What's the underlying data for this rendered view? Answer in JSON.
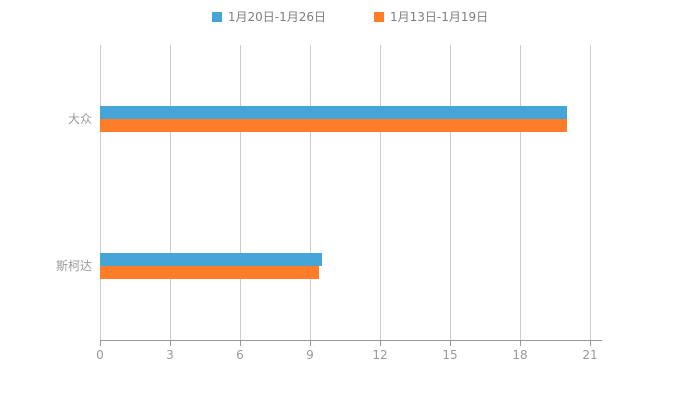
{
  "legend": {
    "items": [
      {
        "label": "1月20日-1月26日",
        "color": "#45a5d6"
      },
      {
        "label": "1月13日-1月19日",
        "color": "#ff7d29"
      }
    ]
  },
  "chart_data": {
    "type": "bar",
    "orientation": "horizontal",
    "title": "",
    "xlabel": "",
    "ylabel": "",
    "categories": [
      "大众",
      "斯柯达"
    ],
    "series": [
      {
        "name": "1月20日-1月26日",
        "color": "#45a5d6",
        "values": [
          20,
          9.5
        ]
      },
      {
        "name": "1月13日-1月19日",
        "color": "#ff7d29",
        "values": [
          20,
          9.4
        ]
      }
    ],
    "x_ticks": [
      "0",
      "3",
      "6",
      "9",
      "12",
      "15",
      "18",
      "21"
    ],
    "x_tick_values": [
      0,
      3,
      6,
      9,
      12,
      15,
      18,
      21
    ],
    "xlim": [
      0,
      21
    ],
    "grid": true,
    "legend_position": "top"
  },
  "colors": {
    "background": "#ffffff",
    "grid_line": "#cccccc",
    "axis_line": "#999999",
    "tick_label": "#999999",
    "category_label": "#999999",
    "legend_label": "#7f7f7f"
  }
}
